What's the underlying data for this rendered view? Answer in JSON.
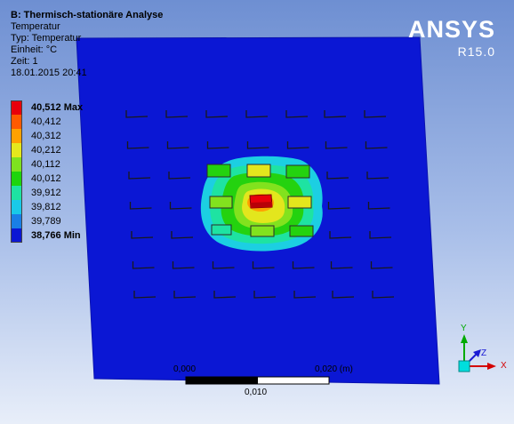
{
  "info": {
    "title": "B: Thermisch-stationäre Analyse",
    "result": "Temperatur",
    "type": "Typ: Temperatur",
    "unit": "Einheit: °C",
    "time": "Zeit: 1",
    "date": "18.01.2015 20:41"
  },
  "legend": [
    {
      "label": "40,512 Max",
      "color": "#e8000b",
      "bold": true
    },
    {
      "label": "40,412",
      "color": "#ff5a00",
      "bold": false
    },
    {
      "label": "40,312",
      "color": "#ffa100",
      "bold": false
    },
    {
      "label": "40,212",
      "color": "#e5e81d",
      "bold": false
    },
    {
      "label": "40,112",
      "color": "#7ee21e",
      "bold": false
    },
    {
      "label": "40,012",
      "color": "#1ed40c",
      "bold": false
    },
    {
      "label": "39,912",
      "color": "#1ee3a2",
      "bold": false
    },
    {
      "label": "39,812",
      "color": "#19c9e8",
      "bold": false
    },
    {
      "label": "39,789",
      "color": "#1a7fe6",
      "bold": false
    },
    {
      "label": "38,766 Min",
      "color": "#0b17d4",
      "bold": true
    }
  ],
  "brand": {
    "name": "ANSYS",
    "version": "R15.0"
  },
  "scale_bar": {
    "label_start": "0,000",
    "label_end": "0,020 (m)",
    "label_mid": "0,010"
  },
  "triad": {
    "x": "X",
    "y": "Y",
    "z": "Z"
  },
  "colors": {
    "plate": "#0b17d4",
    "background_top": "#6e8fd2",
    "background_bottom": "#e8eef9"
  }
}
